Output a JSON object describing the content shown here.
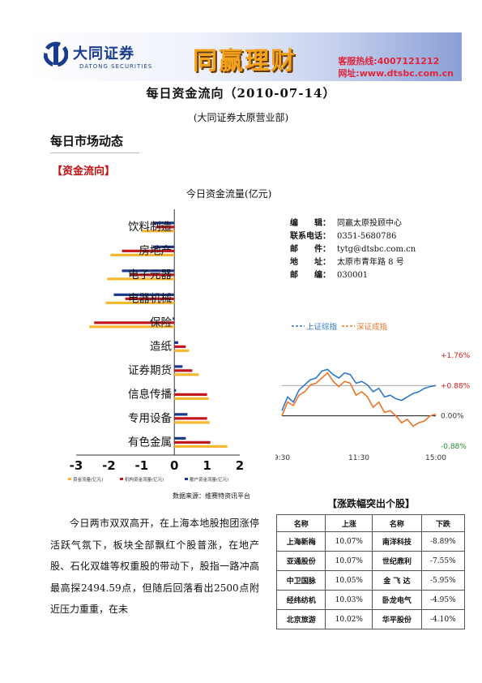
{
  "banner": {
    "company_cn": "大同证券",
    "company_en": "DATONG SECURITIES",
    "brand": "同赢理财",
    "hotline": "客服热线:4007121212",
    "website": "网址:www.dtsbc.com.cn",
    "colors": {
      "company": "#1a3c8c",
      "brand": "#f4a21c",
      "hotline": "#e0243c"
    }
  },
  "title": "每日资金流向（2010-07-14）",
  "subtitle": "(大同证券太原营业部)",
  "section_title": "每日市场动态",
  "subsection_title": "【资金流向】",
  "chart_data": [
    {
      "type": "bar",
      "orientation": "horizontal",
      "title": "今日资金流量(亿元)",
      "categories": [
        "饮料制造",
        "房地产",
        "电子元器",
        "电器机械",
        "保险",
        "造纸",
        "证券期货",
        "信息传播",
        "专用设备",
        "有色金属"
      ],
      "series": [
        {
          "name": "资金流量(亿元)",
          "color": "#f5b730",
          "values": [
            -1.0,
            -1.95,
            -2.05,
            -2.1,
            -2.6,
            0.45,
            0.75,
            1.05,
            1.08,
            1.62
          ]
        },
        {
          "name": "机构资金流量(亿元)",
          "color": "#c0161c",
          "values": [
            -0.55,
            -1.6,
            -1.35,
            -1.5,
            -2.45,
            0.35,
            0.55,
            1.0,
            1.0,
            1.1
          ]
        },
        {
          "name": "散户资金流量(亿元)",
          "color": "#1b3a8c",
          "values": [
            -0.65,
            -0.65,
            -1.6,
            -1.85,
            -0.05,
            0.12,
            0.25,
            0.05,
            0.4,
            0.35
          ]
        }
      ],
      "xlim": [
        -3,
        2
      ],
      "xticks": [
        "-3",
        "-2",
        "-1",
        "0",
        "1",
        "2"
      ],
      "legend": "bottom"
    },
    {
      "type": "line",
      "x_ticks": [
        "9:30",
        "11:30",
        "15:00"
      ],
      "y_ticks": [
        "+1.76%",
        "+0.88%",
        "0.00%",
        "-0.88%"
      ],
      "ylim": [
        -0.88,
        1.76
      ],
      "legend": "top",
      "series": [
        {
          "name": "上证综指",
          "color": "#2f77c9",
          "values": [
            0.15,
            0.55,
            0.4,
            0.75,
            0.9,
            1.05,
            1.1,
            1.3,
            1.35,
            1.2,
            1.1,
            1.25,
            1.2,
            0.95,
            1.0,
            0.9,
            0.7,
            0.8,
            0.55,
            0.6,
            0.5,
            0.45,
            0.55,
            0.65,
            0.7,
            0.8,
            0.85,
            0.88
          ]
        },
        {
          "name": "深证成指",
          "color": "#e8752a",
          "values": [
            0.0,
            0.4,
            0.3,
            0.6,
            0.7,
            0.9,
            0.95,
            1.1,
            1.25,
            1.0,
            0.85,
            1.0,
            0.95,
            0.6,
            0.7,
            0.55,
            0.25,
            0.4,
            0.1,
            0.15,
            0.0,
            -0.2,
            -0.1,
            -0.3,
            -0.2,
            -0.15,
            0.0,
            0.05
          ]
        }
      ]
    }
  ],
  "source": "数据来源：维赛特资讯平台",
  "contact": [
    {
      "key": "编　　辑：",
      "value": "同赢太原投顾中心"
    },
    {
      "key": "联系电话：",
      "value": "0351-5680786"
    },
    {
      "key": "邮　　件：",
      "value": "tytg@dtsbc.com.cn"
    },
    {
      "key": "地　　址：",
      "value": "太原市青年路 8 号"
    },
    {
      "key": "邮　　编：",
      "value": "030001"
    }
  ],
  "paragraph": "今日两市双双高开，在上海本地股抱团涨停活跃气氛下，板块全部飘红个股普涨，在地产股、石化双雄等权重股的带动下，股指一路冲高最高探2494.59点，但随后回落看出2500点附近压力重重，在未",
  "movers": {
    "title": "【涨跌幅突出个股】",
    "headers": [
      "名称",
      "上涨",
      "名称",
      "下跌"
    ],
    "rows": [
      [
        "上海新梅",
        "10.07%",
        "南洋科技",
        "-8.89%"
      ],
      [
        "亚通股份",
        "10.07%",
        "世纪鼎利",
        "-7.55%"
      ],
      [
        "中卫国脉",
        "10.05%",
        "金 飞 达",
        "-5.95%"
      ],
      [
        "经纬纺机",
        "10.03%",
        "卧龙电气",
        "-4.95%"
      ],
      [
        "北京旅游",
        "10.02%",
        "华平股份",
        "-4.10%"
      ]
    ]
  }
}
